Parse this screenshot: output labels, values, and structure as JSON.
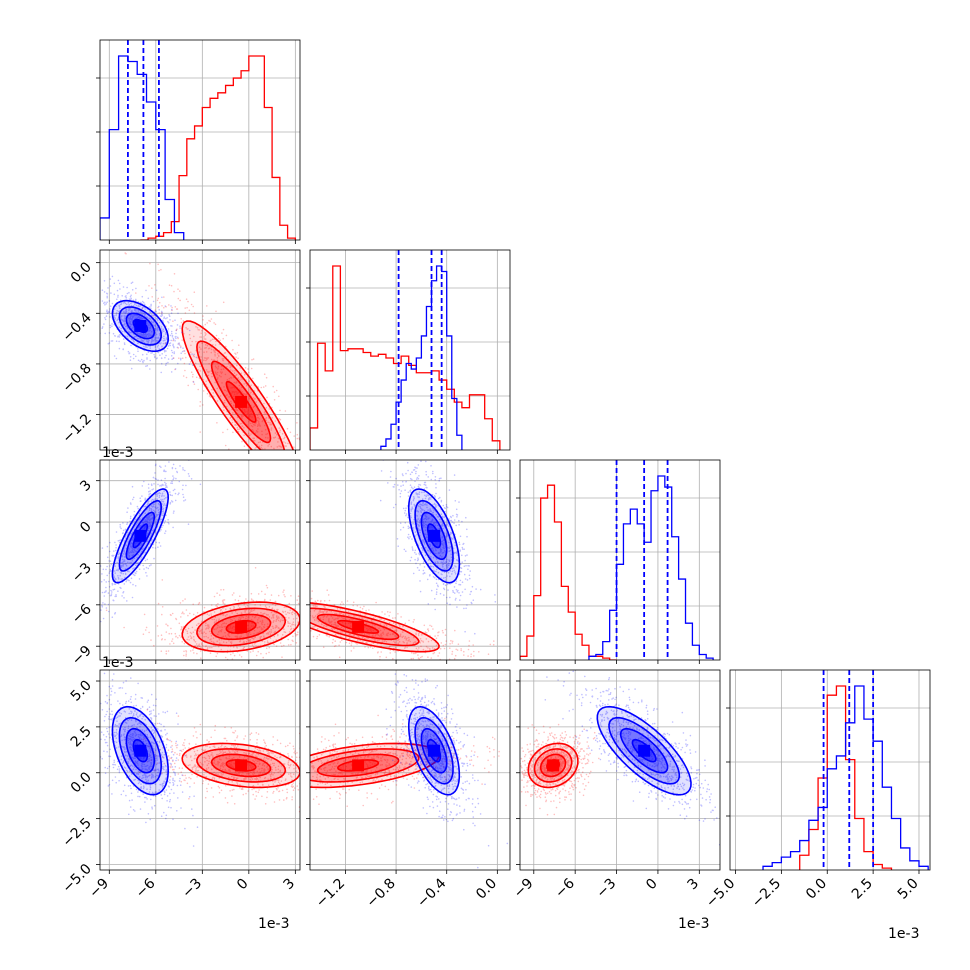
{
  "chart_data": {
    "type": "corner-plot",
    "grid": true,
    "colors": {
      "series_a": "#0000ff",
      "series_b": "#ff0000"
    },
    "offset_labels": {
      "x": "1e-3",
      "y": "1e-3"
    },
    "variables": [
      {
        "ticks": [
          -9,
          -6,
          -3,
          0,
          3
        ],
        "tick_labels": [
          "−9",
          "−6",
          "−3",
          "0",
          "3"
        ],
        "range": [
          -9.6,
          3.3
        ],
        "tick_rotation": 45
      },
      {
        "ticks": [
          -1.2,
          -0.8,
          -0.4,
          0.0
        ],
        "tick_labels": [
          "−1.2",
          "−0.8",
          "−0.4",
          "0.0"
        ],
        "range": [
          -1.48,
          0.1
        ],
        "tick_rotation": 45
      },
      {
        "ticks": [
          -9,
          -6,
          -3,
          0,
          3
        ],
        "tick_labels": [
          "−9",
          "−6",
          "−3",
          "0",
          "3"
        ],
        "range": [
          -10.0,
          4.5
        ],
        "tick_rotation": 45
      },
      {
        "ticks": [
          -5.0,
          -2.5,
          0.0,
          2.5,
          5.0
        ],
        "tick_labels": [
          "−5.0",
          "−2.5",
          "0.0",
          "2.5",
          "5.0"
        ],
        "range": [
          -5.3,
          5.6
        ],
        "tick_rotation": 45
      }
    ],
    "series": [
      {
        "color": "#0000ff",
        "means": [
          -7.0,
          -0.5,
          -1.0,
          1.2
        ],
        "sds": [
          0.9,
          0.1,
          1.7,
          1.2
        ],
        "quantile_lines": [
          [
            -7.8,
            -6.8,
            -5.8
          ],
          [
            -0.78,
            -0.52,
            -0.44
          ],
          [
            -3.0,
            -1.0,
            0.7
          ],
          [
            -0.2,
            1.2,
            2.5
          ]
        ],
        "histograms": [
          {
            "edges": [
              -9.6,
              -9.0,
              -8.4,
              -7.8,
              -7.2,
              -6.6,
              -6.0,
              -5.4,
              -4.8,
              -4.2
            ],
            "counts": [
              0.12,
              0.6,
              1.0,
              0.97,
              0.9,
              0.75,
              0.6,
              0.22,
              0.04
            ]
          },
          {
            "edges": [
              -0.92,
              -0.88,
              -0.84,
              -0.8,
              -0.76,
              -0.72,
              -0.68,
              -0.64,
              -0.6,
              -0.56,
              -0.52,
              -0.48,
              -0.44,
              -0.4,
              -0.36,
              -0.32,
              -0.28
            ],
            "counts": [
              0.02,
              0.06,
              0.14,
              0.26,
              0.38,
              0.47,
              0.44,
              0.5,
              0.62,
              0.78,
              0.92,
              1.0,
              0.97,
              0.62,
              0.28,
              0.08
            ]
          },
          {
            "edges": [
              -5.0,
              -4.5,
              -4.0,
              -3.5,
              -3.0,
              -2.5,
              -2.0,
              -1.5,
              -1.0,
              -0.5,
              0.0,
              0.5,
              1.0,
              1.5,
              2.0,
              2.5,
              3.0,
              3.5,
              4.0
            ],
            "counts": [
              0.02,
              0.03,
              0.1,
              0.27,
              0.52,
              0.74,
              0.82,
              0.74,
              0.64,
              0.92,
              1.0,
              0.94,
              0.67,
              0.44,
              0.2,
              0.08,
              0.03,
              0.01
            ]
          },
          {
            "edges": [
              -3.5,
              -3.0,
              -2.5,
              -2.0,
              -1.5,
              -1.0,
              -0.5,
              0.0,
              0.5,
              1.0,
              1.5,
              2.0,
              2.5,
              3.0,
              3.5,
              4.0,
              4.5,
              5.0,
              5.5
            ],
            "counts": [
              0.02,
              0.04,
              0.07,
              0.1,
              0.16,
              0.27,
              0.34,
              0.55,
              0.62,
              0.8,
              1.0,
              0.82,
              0.7,
              0.45,
              0.28,
              0.12,
              0.05,
              0.02
            ]
          }
        ],
        "correlations": [
          [
            1,
            -0.5,
            0.82,
            -0.45
          ],
          [
            -0.5,
            1,
            -0.6,
            -0.55
          ],
          [
            0.82,
            -0.6,
            1,
            -0.75
          ],
          [
            -0.45,
            -0.55,
            -0.75,
            1
          ]
        ]
      },
      {
        "color": "#ff0000",
        "means": [
          -0.5,
          -1.1,
          -7.6,
          0.4
        ],
        "sds": [
          1.9,
          0.32,
          0.9,
          0.6
        ],
        "quantile_lines": [],
        "histograms": [
          {
            "edges": [
              -7.0,
              -6.5,
              -6.0,
              -5.5,
              -5.0,
              -4.5,
              -4.0,
              -3.5,
              -3.0,
              -2.5,
              -2.0,
              -1.5,
              -1.0,
              -0.5,
              0.0,
              0.5,
              1.0,
              1.5,
              2.0,
              2.5,
              3.0
            ],
            "counts": [
              0.0,
              0.01,
              0.02,
              0.04,
              0.1,
              0.35,
              0.55,
              0.62,
              0.72,
              0.77,
              0.8,
              0.84,
              0.88,
              0.92,
              1.0,
              1.0,
              0.72,
              0.34,
              0.08,
              0.01
            ]
          },
          {
            "edges": [
              -1.48,
              -1.42,
              -1.36,
              -1.3,
              -1.24,
              -1.18,
              -1.12,
              -1.06,
              -1.0,
              -0.94,
              -0.88,
              -0.82,
              -0.76,
              -0.7,
              -0.64,
              -0.58,
              -0.52,
              -0.46,
              -0.4,
              -0.34,
              -0.28,
              -0.22,
              -0.16,
              -0.1,
              -0.04,
              0.02
            ],
            "counts": [
              0.12,
              0.58,
              0.43,
              1.0,
              0.54,
              0.55,
              0.55,
              0.53,
              0.51,
              0.52,
              0.5,
              0.47,
              0.51,
              0.46,
              0.42,
              0.42,
              0.43,
              0.38,
              0.33,
              0.26,
              0.23,
              0.3,
              0.3,
              0.17,
              0.05
            ]
          },
          {
            "edges": [
              -10.0,
              -9.5,
              -9.0,
              -8.5,
              -8.0,
              -7.5,
              -7.0,
              -6.5,
              -6.0,
              -5.5,
              -5.0,
              -4.5,
              -4.0,
              -3.5,
              -3.0
            ],
            "counts": [
              0.02,
              0.13,
              0.35,
              0.88,
              0.95,
              0.75,
              0.4,
              0.26,
              0.14,
              0.08,
              0.02,
              0.02,
              0.01,
              0.0
            ]
          },
          {
            "edges": [
              -1.5,
              -1.0,
              -0.5,
              0.0,
              0.5,
              1.0,
              1.5,
              2.0,
              2.5,
              3.0,
              3.5
            ],
            "counts": [
              0.08,
              0.22,
              0.5,
              0.95,
              1.0,
              0.6,
              0.28,
              0.1,
              0.03,
              0.01
            ]
          }
        ],
        "correlations": [
          [
            1,
            -0.9,
            0.3,
            -0.3
          ],
          [
            -0.9,
            1,
            -0.78,
            0.45
          ],
          [
            0.3,
            -0.78,
            1,
            0.2
          ],
          [
            -0.3,
            0.45,
            0.2,
            1
          ]
        ]
      }
    ]
  }
}
